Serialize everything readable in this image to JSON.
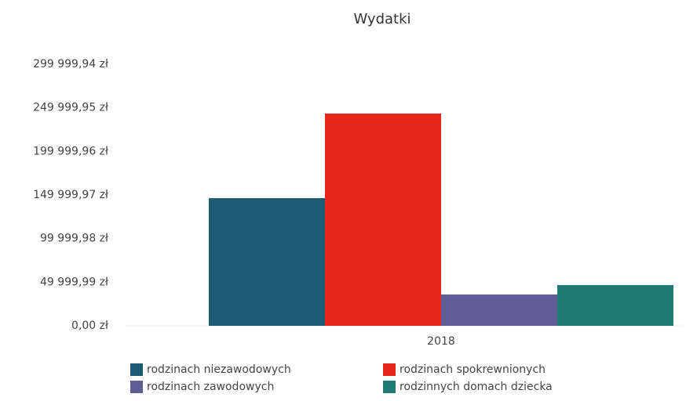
{
  "chart_data": {
    "type": "bar",
    "title": "Wydatki",
    "categories": [
      "2018"
    ],
    "series": [
      {
        "name": "rodzinach niezawodowych",
        "color": "#1e5b73",
        "values": [
          146400
        ]
      },
      {
        "name": "rodzinach spokrewnionych",
        "color": "#e8261e",
        "values": [
          243400
        ]
      },
      {
        "name": "rodzinach zawodowych",
        "color": "#5e5e94",
        "values": [
          35900
        ]
      },
      {
        "name": "rodzinnych domach dziecka",
        "color": "#1f7c74",
        "values": [
          46700
        ]
      }
    ],
    "ylim": [
      0,
      299999.94
    ],
    "yticks": [
      {
        "value": 0,
        "label": "0,00 zł"
      },
      {
        "value": 49999.99,
        "label": "49 999,99 zł"
      },
      {
        "value": 99999.98,
        "label": "99 999,98 zł"
      },
      {
        "value": 149999.97,
        "label": "149 999,97 zł"
      },
      {
        "value": 199999.96,
        "label": "199 999,96 zł"
      },
      {
        "value": 249999.95,
        "label": "249 999,95 zł"
      },
      {
        "value": 299999.94,
        "label": "299 999,94 zł"
      }
    ],
    "grid": false
  }
}
